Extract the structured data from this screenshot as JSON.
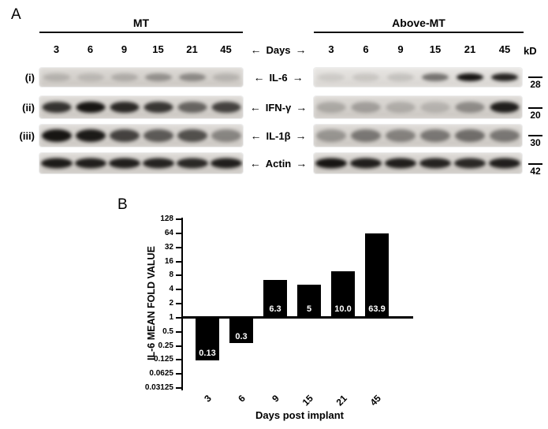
{
  "panelA": {
    "label": "A",
    "left_group": "MT",
    "right_group": "Above-MT",
    "days": [
      "3",
      "6",
      "9",
      "15",
      "21",
      "45"
    ],
    "days_label": "Days",
    "arrow_left": "←",
    "arrow_right": "→",
    "kd_header": "kD",
    "rows": [
      {
        "index": "(i)",
        "target": "IL-6",
        "kd": "28",
        "left_bands": [
          0.15,
          0.12,
          0.18,
          0.32,
          0.36,
          0.14
        ],
        "right_bands": [
          0.08,
          0.1,
          0.12,
          0.5,
          0.95,
          0.88
        ]
      },
      {
        "index": "(ii)",
        "target": "IFN-γ",
        "kd": "20",
        "left_bands": [
          0.8,
          0.95,
          0.85,
          0.78,
          0.55,
          0.72
        ],
        "right_bands": [
          0.2,
          0.25,
          0.18,
          0.15,
          0.35,
          0.9
        ]
      },
      {
        "index": "(iii)",
        "target": "IL-1β",
        "kd": "30",
        "left_bands": [
          0.95,
          0.92,
          0.72,
          0.6,
          0.65,
          0.38
        ],
        "right_bands": [
          0.3,
          0.45,
          0.4,
          0.45,
          0.5,
          0.45
        ]
      },
      {
        "index": "",
        "target": "Actin",
        "kd": "42",
        "left_bands": [
          0.92,
          0.9,
          0.9,
          0.88,
          0.85,
          0.9
        ],
        "right_bands": [
          0.95,
          0.9,
          0.9,
          0.88,
          0.85,
          0.9
        ]
      }
    ]
  },
  "panelB": {
    "label": "B"
  },
  "chart_data": {
    "type": "bar",
    "categories": [
      "3",
      "6",
      "9",
      "15",
      "21",
      "45"
    ],
    "values": [
      0.13,
      0.3,
      6.3,
      5,
      10.0,
      63.9
    ],
    "bar_labels": [
      "0.13",
      "0.3",
      "6.3",
      "5",
      "10.0",
      "63.9"
    ],
    "title": "",
    "xlabel": "Days post implant",
    "ylabel": "IL-6 MEAN FOLD VALUE",
    "yscale": "log2",
    "yticks": [
      128,
      64,
      32,
      16,
      8,
      4,
      2,
      1,
      0.5,
      0.25,
      0.125,
      0.0625,
      0.03125
    ],
    "ytick_labels": [
      "128",
      "64",
      "32",
      "16",
      "8",
      "4",
      "2",
      "1",
      "0.5",
      "0.25",
      "0.125",
      "0.0625",
      "0.03125"
    ],
    "baseline": 1,
    "grid": false,
    "legend": "none",
    "bar_color": "#000000",
    "bar_label_color": "#ffffff"
  }
}
